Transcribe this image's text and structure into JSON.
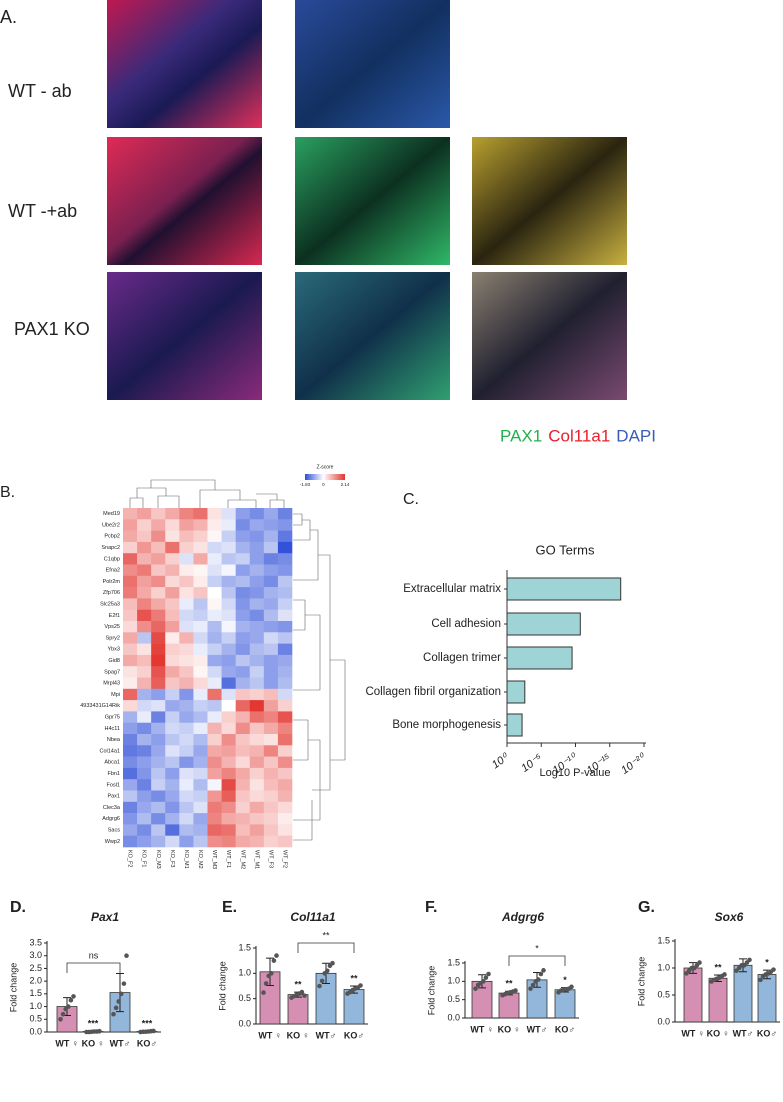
{
  "panel_a": {
    "label": "A.",
    "rows": [
      "WT - ab",
      "WT -+ab",
      "PAX1 KO"
    ],
    "legend": [
      {
        "text": "PAX1",
        "color": "#22b04b"
      },
      {
        "text": "Col11a1",
        "color": "#e8202a"
      },
      {
        "text": "DAPI",
        "color": "#3a5bb8"
      }
    ]
  },
  "chart_data": [
    {
      "type": "heatmap",
      "panel_label": "B.",
      "colorbar_title": "Z-score",
      "zlim": [
        -1.83,
        2.14
      ],
      "zticks": [
        -1.83,
        0,
        2.14
      ],
      "rows": [
        "Med19",
        "Ube2r2",
        "Pcbp2",
        "Snapc2",
        "C1qbp",
        "Efna2",
        "Polr2m",
        "Zfp706",
        "Slc25a3",
        "E2f1",
        "Vps25",
        "Spry2",
        "Ybx3",
        "Gid8",
        "Spag7",
        "Mrpl43",
        "Mpi",
        "4933431G14Rik",
        "Gpr75",
        "H4c11",
        "Nbea",
        "Col14a1",
        "Abca1",
        "Fbn1",
        "Fosl1",
        "Pax1",
        "Clec3a",
        "Adgrg6",
        "Sacs",
        "Wwp2"
      ],
      "columns": [
        "KO_F2",
        "KO_F1",
        "KO_M3",
        "KO_F3",
        "KO_M1",
        "KO_M2",
        "WT_M3",
        "WT_F1",
        "WT_M2",
        "WT_M1",
        "WT_F3",
        "WT_F2"
      ],
      "values": [
        [
          0.8,
          1.0,
          0.6,
          0.9,
          1.3,
          1.5,
          0.3,
          -0.3,
          -1.0,
          -1.2,
          -0.9,
          -1.3
        ],
        [
          1.0,
          0.5,
          0.9,
          0.4,
          1.0,
          0.8,
          0.2,
          -0.2,
          -1.2,
          -0.9,
          -1.0,
          -1.1
        ],
        [
          0.9,
          0.6,
          1.2,
          0.3,
          0.7,
          0.5,
          0.1,
          -0.5,
          -1.0,
          -1.1,
          -0.8,
          -1.4
        ],
        [
          0.5,
          1.1,
          0.7,
          1.5,
          0.5,
          0.3,
          -0.4,
          -0.3,
          -0.8,
          -1.0,
          -0.6,
          -1.8
        ],
        [
          1.6,
          0.8,
          1.0,
          0.5,
          -0.3,
          0.9,
          -0.2,
          -0.6,
          -0.5,
          -1.0,
          -1.3,
          -1.2
        ],
        [
          1.2,
          1.4,
          0.6,
          0.8,
          0.2,
          0.1,
          -0.3,
          -0.1,
          -1.0,
          -0.8,
          -1.0,
          -1.1
        ],
        [
          1.5,
          1.0,
          1.2,
          0.4,
          0.6,
          0.2,
          -0.5,
          -0.8,
          -0.7,
          -1.0,
          -1.2,
          -0.6
        ],
        [
          1.4,
          0.9,
          0.5,
          1.0,
          0.3,
          0.6,
          0.0,
          -0.6,
          -1.2,
          -1.1,
          -0.8,
          -0.7
        ],
        [
          0.7,
          1.3,
          0.9,
          0.6,
          -0.2,
          -0.6,
          0.1,
          -0.4,
          -1.1,
          -0.8,
          -0.9,
          -0.5
        ],
        [
          0.6,
          1.8,
          1.4,
          0.7,
          -0.4,
          -0.5,
          -0.2,
          -0.3,
          -1.0,
          -1.2,
          -0.7,
          -0.3
        ],
        [
          0.4,
          1.2,
          1.6,
          1.0,
          -0.3,
          -0.2,
          -0.7,
          -0.1,
          -0.8,
          -0.9,
          -1.0,
          -1.1
        ],
        [
          0.9,
          -0.6,
          1.9,
          0.2,
          0.8,
          -0.4,
          -0.8,
          -0.5,
          -1.0,
          -0.9,
          -0.4,
          -0.6
        ],
        [
          0.6,
          0.3,
          2.0,
          0.5,
          0.4,
          -0.2,
          -0.5,
          -0.8,
          -1.1,
          -0.7,
          -0.6,
          -1.3
        ],
        [
          0.9,
          0.7,
          2.1,
          0.4,
          0.3,
          0.2,
          -0.9,
          -1.0,
          -0.6,
          -0.8,
          -1.0,
          -0.9
        ],
        [
          0.3,
          0.5,
          1.8,
          0.9,
          0.6,
          0.1,
          -0.4,
          -0.9,
          -1.0,
          -0.5,
          -1.0,
          -0.8
        ],
        [
          0.2,
          0.8,
          1.7,
          0.6,
          0.8,
          0.4,
          -0.2,
          -1.5,
          -0.8,
          -0.6,
          -1.0,
          -0.7
        ],
        [
          1.6,
          -0.8,
          -1.0,
          -0.5,
          -1.1,
          -0.2,
          1.5,
          -0.3,
          0.6,
          0.5,
          0.7,
          -0.4
        ],
        [
          0.4,
          -0.4,
          -0.3,
          -0.9,
          -0.8,
          -0.5,
          -0.6,
          0.0,
          1.6,
          2.1,
          1.0,
          0.5
        ],
        [
          -0.8,
          -0.2,
          -1.3,
          -0.5,
          -0.9,
          -0.7,
          -0.2,
          0.5,
          0.8,
          1.5,
          1.3,
          1.8
        ],
        [
          -1.0,
          -1.2,
          -0.8,
          -0.4,
          -0.5,
          -0.2,
          0.8,
          0.4,
          1.2,
          0.6,
          0.9,
          1.3
        ],
        [
          -1.3,
          -0.8,
          -1.0,
          -0.6,
          -0.4,
          -0.7,
          0.5,
          1.2,
          0.6,
          0.4,
          0.3,
          1.5
        ],
        [
          -1.4,
          -1.3,
          -0.9,
          -0.3,
          -0.5,
          -0.9,
          0.9,
          1.0,
          0.7,
          0.8,
          1.3,
          0.5
        ],
        [
          -1.2,
          -1.0,
          -0.8,
          -0.6,
          -1.1,
          -0.8,
          1.2,
          0.8,
          0.4,
          1.0,
          0.6,
          1.2
        ],
        [
          -1.5,
          -1.1,
          -0.6,
          -1.0,
          -0.3,
          -0.4,
          1.0,
          1.3,
          0.9,
          0.5,
          0.8,
          0.6
        ],
        [
          -0.9,
          -1.3,
          -0.5,
          -0.8,
          -0.2,
          -0.7,
          -0.1,
          1.9,
          0.8,
          0.3,
          0.7,
          0.9
        ],
        [
          -0.6,
          -1.0,
          -1.2,
          -0.9,
          -0.4,
          -0.5,
          1.1,
          1.7,
          0.6,
          0.4,
          0.5,
          0.8
        ],
        [
          -1.3,
          -0.9,
          -0.7,
          -1.1,
          -0.6,
          -0.3,
          1.4,
          1.2,
          0.5,
          0.9,
          0.6,
          0.4
        ],
        [
          -1.1,
          -0.7,
          -1.2,
          -0.8,
          -0.4,
          -0.9,
          1.3,
          0.9,
          0.8,
          0.6,
          0.5,
          0.2
        ],
        [
          -0.9,
          -1.2,
          -0.6,
          -1.5,
          -0.7,
          -0.8,
          1.6,
          1.5,
          0.7,
          1.0,
          0.6,
          0.3
        ],
        [
          -1.2,
          -1.0,
          -0.8,
          -0.4,
          -1.0,
          -0.6,
          1.2,
          1.3,
          0.9,
          0.8,
          0.5,
          0.6
        ]
      ]
    },
    {
      "type": "hbar",
      "panel_label": "C.",
      "title": "GO Terms",
      "xlabel": "Log10 P-value",
      "color": "#9fd4d6",
      "categories": [
        "Extracellular matrix",
        "Cell adhesion",
        "Collagen trimer",
        "Collagen fibril organization",
        "Bone morphogenesis"
      ],
      "values": [
        16.6,
        10.7,
        9.5,
        2.6,
        2.2
      ],
      "xlim": [
        0,
        20
      ],
      "xticks": [
        {
          "value": 0,
          "label": "10⁰"
        },
        {
          "value": 5,
          "label": "10⁻⁵"
        },
        {
          "value": 10,
          "label": "10⁻¹⁰"
        },
        {
          "value": 15,
          "label": "10⁻¹⁵"
        },
        {
          "value": 20,
          "label": "10⁻²⁰"
        }
      ]
    },
    {
      "type": "dotbar",
      "panel_label": "D.",
      "title": "Pax1",
      "ylabel": "Fold change",
      "categories": [
        "WT ♀",
        "KO ♀",
        "WT♂",
        "KO♂"
      ],
      "colors": [
        "#d58fb2",
        "#d58fb2",
        "#93b7da",
        "#93b7da"
      ],
      "values": [
        1.0,
        0.02,
        1.55,
        0.02
      ],
      "errors": [
        0.35,
        0.02,
        0.75,
        0.02
      ],
      "points": [
        [
          0.5,
          0.7,
          0.9,
          1.0,
          1.25,
          1.4
        ],
        [
          0,
          0,
          0.01,
          0.02,
          0.02,
          0.03
        ],
        [
          0.7,
          0.95,
          1.2,
          1.5,
          1.9,
          3.0
        ],
        [
          0,
          0.01,
          0.01,
          0.02,
          0.03,
          0.04
        ]
      ],
      "significance": [
        "",
        "***",
        "",
        "***"
      ],
      "bracket_label": "ns",
      "ylim": [
        0,
        3.5
      ],
      "yticks": [
        {
          "value": 0,
          "label": "0.0"
        },
        0.5,
        {
          "value": 1,
          "label": "1.0"
        },
        1.5,
        {
          "value": 2,
          "label": "2.0"
        },
        2.5,
        {
          "value": 3,
          "label": "3.0"
        },
        3.5
      ]
    },
    {
      "type": "dotbar",
      "panel_label": "E.",
      "title": "Col11a1",
      "ylabel": "Fold change",
      "categories": [
        "WT ♀",
        "KO ♀",
        "WT♂",
        "KO♂"
      ],
      "colors": [
        "#d58fb2",
        "#d58fb2",
        "#93b7da",
        "#93b7da"
      ],
      "values": [
        1.03,
        0.58,
        1.0,
        0.68
      ],
      "errors": [
        0.27,
        0.05,
        0.2,
        0.07
      ],
      "points": [
        [
          0.62,
          0.8,
          0.95,
          1.0,
          1.25,
          1.35
        ],
        [
          0.52,
          0.55,
          0.58,
          0.6,
          0.63,
          0.56
        ],
        [
          0.75,
          0.85,
          1.0,
          1.05,
          1.15,
          1.2
        ],
        [
          0.6,
          0.63,
          0.67,
          0.7,
          0.72,
          0.76
        ]
      ],
      "significance": [
        "",
        "**",
        "",
        "**"
      ],
      "bracket_label": "**",
      "ylim": [
        0,
        1.5
      ],
      "yticks": [
        {
          "value": 0,
          "label": "0.0"
        },
        0.5,
        {
          "value": 1,
          "label": "1.0"
        },
        1.5
      ]
    },
    {
      "type": "dotbar",
      "panel_label": "F.",
      "title": "Adgrg6",
      "ylabel": "Fold change",
      "categories": [
        "WT ♀",
        "KO ♀",
        "WT♂",
        "KO♂"
      ],
      "colors": [
        "#d58fb2",
        "#d58fb2",
        "#93b7da",
        "#93b7da"
      ],
      "values": [
        1.0,
        0.68,
        1.04,
        0.77
      ],
      "errors": [
        0.18,
        0.05,
        0.2,
        0.06
      ],
      "points": [
        [
          0.8,
          0.9,
          0.95,
          1.0,
          1.1,
          1.2
        ],
        [
          0.62,
          0.65,
          0.68,
          0.7,
          0.72,
          0.75
        ],
        [
          0.8,
          0.9,
          1.0,
          1.05,
          1.2,
          1.3
        ],
        [
          0.7,
          0.75,
          0.77,
          0.78,
          0.8,
          0.85
        ]
      ],
      "significance": [
        "",
        "**",
        "",
        "*"
      ],
      "bracket_label": "*",
      "ylim": [
        0,
        1.5
      ],
      "yticks": [
        {
          "value": 0,
          "label": "0.0"
        },
        0.5,
        {
          "value": 1,
          "label": "1.0"
        },
        1.5
      ]
    },
    {
      "type": "dotbar",
      "panel_label": "G.",
      "title": "Sox6",
      "ylabel": "Fold change",
      "categories": [
        "WT ♀",
        "KO ♀",
        "WT♂",
        "KO♂"
      ],
      "colors": [
        "#d58fb2",
        "#d58fb2",
        "#93b7da",
        "#93b7da"
      ],
      "values": [
        1.0,
        0.81,
        1.05,
        0.88
      ],
      "errors": [
        0.1,
        0.06,
        0.12,
        0.08
      ],
      "points": [
        [
          0.9,
          0.95,
          1.0,
          1.0,
          1.05,
          1.1
        ],
        [
          0.75,
          0.78,
          0.8,
          0.82,
          0.85,
          0.88
        ],
        [
          0.95,
          1.0,
          1.05,
          1.05,
          1.1,
          1.15
        ],
        [
          0.78,
          0.85,
          0.88,
          0.9,
          0.93,
          0.97
        ]
      ],
      "significance": [
        "",
        "**",
        "",
        "*"
      ],
      "ylim": [
        0,
        1.5
      ],
      "yticks": [
        {
          "value": 0,
          "label": "0.0"
        },
        0.5,
        {
          "value": 1,
          "label": "1.0"
        },
        1.5
      ]
    }
  ]
}
